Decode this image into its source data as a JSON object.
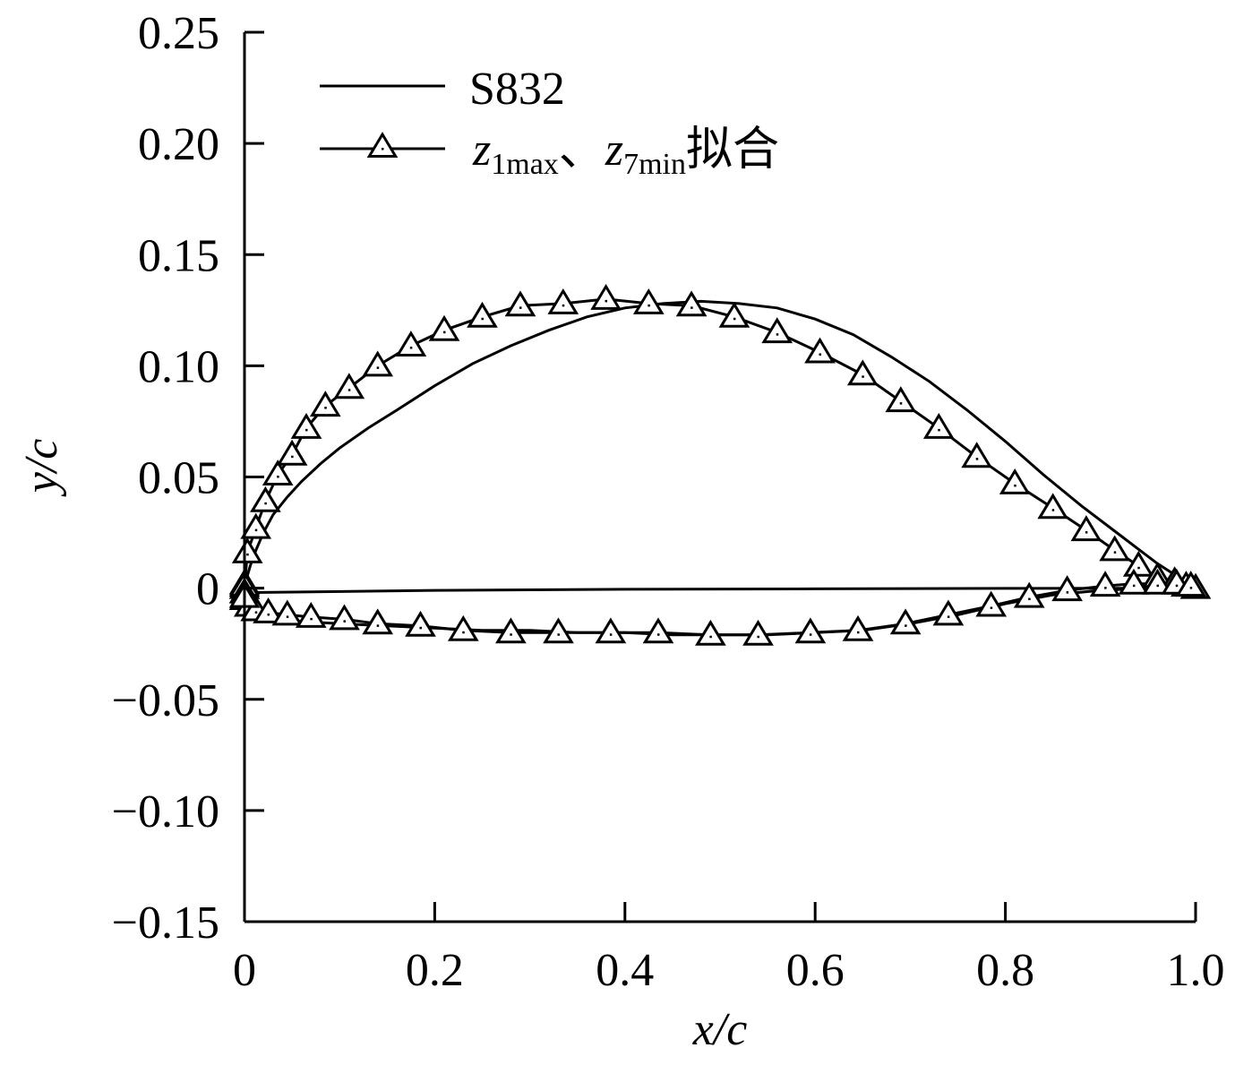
{
  "chart_data": {
    "type": "line",
    "title": "",
    "xlabel": "x/c",
    "ylabel": "y/c",
    "xlim": [
      0,
      1.0
    ],
    "ylim": [
      -0.15,
      0.25
    ],
    "x_ticks": [
      0,
      0.2,
      0.4,
      0.6,
      0.8,
      1.0
    ],
    "x_tick_labels": [
      "0",
      "0.2",
      "0.4",
      "0.6",
      "0.8",
      "1.0"
    ],
    "y_ticks": [
      0.25,
      0.2,
      0.15,
      0.1,
      0.05,
      0,
      -0.05,
      -0.1,
      -0.15
    ],
    "y_tick_labels": [
      "0.25",
      "0.20",
      "0.15",
      "0.10",
      "0.05",
      "0",
      "−0.05",
      "−0.10",
      "−0.15"
    ],
    "grid": false,
    "legend_position": "top-left",
    "legend": [
      {
        "label": "S832",
        "marker": "none"
      },
      {
        "label_parts": [
          "z",
          "1max",
          "、",
          "z",
          "7min",
          "拟合"
        ],
        "marker": "triangle"
      }
    ],
    "series": [
      {
        "name": "S832",
        "style": "line",
        "segments": [
          {
            "x": [
              1.0,
              0.96,
              0.92,
              0.88,
              0.84,
              0.8,
              0.76,
              0.72,
              0.68,
              0.64,
              0.6,
              0.56,
              0.52,
              0.48,
              0.44,
              0.4,
              0.36,
              0.32,
              0.28,
              0.24,
              0.2,
              0.16,
              0.13,
              0.1,
              0.08,
              0.06,
              0.045,
              0.03,
              0.02,
              0.012,
              0.006,
              0.002,
              0.0
            ],
            "y": [
              0.0,
              0.011,
              0.024,
              0.037,
              0.051,
              0.066,
              0.08,
              0.093,
              0.104,
              0.114,
              0.121,
              0.126,
              0.128,
              0.129,
              0.128,
              0.126,
              0.122,
              0.116,
              0.109,
              0.101,
              0.091,
              0.08,
              0.072,
              0.063,
              0.056,
              0.048,
              0.041,
              0.033,
              0.025,
              0.017,
              0.01,
              0.004,
              0.0
            ]
          },
          {
            "x": [
              0.0,
              0.002,
              0.006,
              0.015,
              0.03,
              0.06,
              0.1,
              0.15,
              0.2,
              0.25,
              0.3,
              0.35,
              0.4,
              0.45,
              0.5,
              0.55,
              0.6,
              0.65,
              0.7,
              0.75,
              0.8,
              0.85,
              0.9,
              0.95,
              1.0
            ],
            "y": [
              0.0,
              -0.006,
              -0.01,
              -0.013,
              -0.014,
              -0.015,
              -0.016,
              -0.017,
              -0.018,
              -0.019,
              -0.019,
              -0.02,
              -0.02,
              -0.021,
              -0.021,
              -0.021,
              -0.02,
              -0.019,
              -0.016,
              -0.012,
              -0.007,
              -0.003,
              -0.001,
              0.0,
              0.0
            ]
          },
          {
            "x": [
              0.0,
              0.2,
              0.4,
              0.6,
              0.8,
              1.0
            ],
            "y": [
              -0.002,
              -0.001,
              -0.0005,
              -0.0003,
              -0.0001,
              0.0
            ]
          }
        ]
      },
      {
        "name_parts": [
          "z",
          "1max",
          "、",
          "z",
          "7min",
          "拟合"
        ],
        "style": "line+triangle",
        "upper": {
          "x": [
            0.0,
            0.003,
            0.012,
            0.022,
            0.035,
            0.05,
            0.065,
            0.085,
            0.11,
            0.14,
            0.175,
            0.21,
            0.25,
            0.29,
            0.335,
            0.38,
            0.425,
            0.47,
            0.515,
            0.56,
            0.605,
            0.65,
            0.69,
            0.73,
            0.77,
            0.81,
            0.85,
            0.885,
            0.915,
            0.94,
            0.96,
            0.978,
            0.99,
            1.0
          ],
          "y": [
            0.0,
            0.016,
            0.027,
            0.039,
            0.051,
            0.06,
            0.072,
            0.082,
            0.09,
            0.1,
            0.109,
            0.116,
            0.122,
            0.127,
            0.128,
            0.13,
            0.128,
            0.127,
            0.122,
            0.115,
            0.106,
            0.096,
            0.084,
            0.072,
            0.059,
            0.047,
            0.036,
            0.026,
            0.017,
            0.01,
            0.005,
            0.003,
            0.001,
            0.0
          ]
        },
        "lower": {
          "x": [
            0.0,
            0.005,
            0.012,
            0.025,
            0.045,
            0.07,
            0.105,
            0.14,
            0.185,
            0.23,
            0.28,
            0.33,
            0.385,
            0.435,
            0.49,
            0.54,
            0.595,
            0.645,
            0.695,
            0.74,
            0.785,
            0.825,
            0.865,
            0.905,
            0.935,
            0.96,
            0.98,
            0.995
          ],
          "y": [
            -0.005,
            -0.008,
            -0.01,
            -0.011,
            -0.012,
            -0.013,
            -0.014,
            -0.016,
            -0.017,
            -0.019,
            -0.02,
            -0.02,
            -0.02,
            -0.02,
            -0.021,
            -0.021,
            -0.02,
            -0.019,
            -0.016,
            -0.012,
            -0.008,
            -0.004,
            -0.001,
            0.001,
            0.002,
            0.002,
            0.002,
            0.001
          ]
        },
        "nose": {
          "x": [
            0.0,
            0.0,
            0.0,
            0.0
          ],
          "y": [
            0.002,
            0.001,
            -0.002,
            -0.004
          ]
        }
      }
    ]
  }
}
